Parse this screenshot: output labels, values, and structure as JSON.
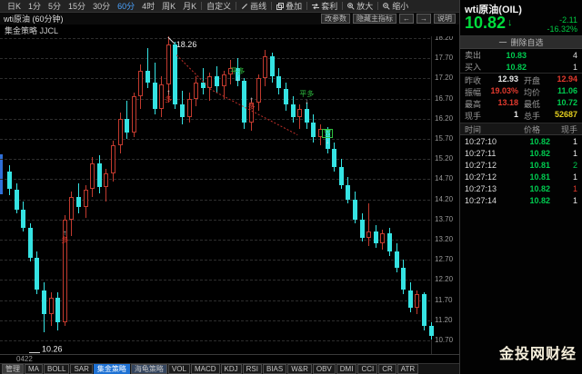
{
  "toolbar": {
    "items": [
      {
        "name": "period-daily",
        "label": "日K"
      },
      {
        "name": "period-1min",
        "label": "1分"
      },
      {
        "name": "period-5min",
        "label": "5分"
      },
      {
        "name": "period-15min",
        "label": "15分"
      },
      {
        "name": "period-30min",
        "label": "30分"
      },
      {
        "name": "period-60min",
        "label": "60分",
        "active": true
      },
      {
        "name": "period-4hour",
        "label": "4时"
      },
      {
        "name": "period-weekly",
        "label": "周K"
      },
      {
        "name": "period-monthly",
        "label": "月K"
      },
      {
        "name": "custom-period",
        "label": "自定义",
        "sep": true
      },
      {
        "name": "draw-line",
        "label": "画线",
        "icon": "pencil",
        "sep": true
      },
      {
        "name": "overlay",
        "label": "叠加",
        "icon": "overlay",
        "sep": true
      },
      {
        "name": "arbitrage",
        "label": "套利",
        "icon": "arbitrage",
        "sep": true
      },
      {
        "name": "zoom-in",
        "label": "放大",
        "icon": "zoom-in",
        "sep": true
      },
      {
        "name": "zoom-out",
        "label": "缩小",
        "icon": "zoom-out",
        "sep": true
      }
    ]
  },
  "chart_header": {
    "title": "wti原油 (60分钟)",
    "strategy": "集金策略 JJCL",
    "buttons": [
      {
        "name": "change-params",
        "label": "改参数"
      },
      {
        "name": "hide-main-indicator",
        "label": "隐藏主指标"
      },
      {
        "name": "prev-arrow",
        "label": "←"
      },
      {
        "name": "next-arrow",
        "label": "→"
      },
      {
        "name": "help",
        "label": "说明"
      }
    ]
  },
  "chart_data": {
    "type": "candlestick",
    "symbol": "wti原油",
    "period": "60分钟",
    "strategy": "集金策略 JJCL",
    "x_axis_label": "0422",
    "y_axis": {
      "max": 18.2,
      "min": 10.7,
      "step": 0.5,
      "labels": [
        "18.20",
        "17.70",
        "17.20",
        "16.70",
        "16.20",
        "15.70",
        "15.20",
        "14.70",
        "14.20",
        "13.70",
        "13.20",
        "12.70",
        "12.20",
        "11.70",
        "11.20",
        "10.70"
      ]
    },
    "colors": {
      "up": "#c23a2e",
      "down": "#35e3e3",
      "grid": "#2d2d2d",
      "long_label": "#e23a2e",
      "close_label": "#2fc040",
      "short_label": "#2fc040",
      "arrow": "#e8e8e8",
      "stop_line": "#c2302a"
    },
    "candles": [
      [
        14.9,
        15.05,
        14.3,
        14.45
      ],
      [
        14.45,
        14.6,
        13.85,
        13.95
      ],
      [
        13.95,
        14.15,
        13.4,
        13.5
      ],
      [
        13.5,
        13.6,
        12.65,
        12.75
      ],
      [
        12.75,
        12.9,
        11.85,
        11.95
      ],
      [
        11.95,
        12.15,
        10.9,
        11.35
      ],
      [
        11.35,
        11.9,
        11.05,
        11.75
      ],
      [
        11.75,
        11.9,
        10.95,
        11.15
      ],
      [
        11.15,
        13.8,
        11.05,
        13.7
      ],
      [
        13.7,
        14.4,
        13.3,
        14.25
      ],
      [
        14.25,
        14.6,
        13.85,
        14.0
      ],
      [
        14.0,
        14.55,
        13.75,
        14.45
      ],
      [
        14.45,
        15.25,
        14.25,
        15.1
      ],
      [
        15.1,
        15.3,
        14.35,
        14.5
      ],
      [
        14.5,
        14.95,
        14.15,
        14.85
      ],
      [
        14.85,
        15.65,
        14.65,
        15.55
      ],
      [
        15.55,
        16.35,
        15.35,
        16.2
      ],
      [
        16.2,
        16.65,
        15.7,
        15.85
      ],
      [
        15.85,
        16.85,
        15.75,
        16.75
      ],
      [
        16.75,
        17.55,
        16.45,
        17.4
      ],
      [
        17.4,
        17.95,
        16.95,
        17.1
      ],
      [
        17.1,
        17.6,
        16.3,
        16.45
      ],
      [
        16.45,
        17.25,
        16.25,
        17.05
      ],
      [
        17.05,
        18.26,
        16.6,
        18.05
      ],
      [
        18.05,
        18.1,
        16.45,
        16.55
      ],
      [
        16.55,
        16.9,
        16.05,
        16.25
      ],
      [
        16.25,
        16.85,
        16.1,
        16.7
      ],
      [
        16.7,
        17.25,
        16.5,
        17.1
      ],
      [
        17.1,
        17.45,
        16.8,
        16.95
      ],
      [
        16.95,
        17.35,
        16.65,
        17.25
      ],
      [
        17.25,
        17.5,
        16.85,
        17.0
      ],
      [
        17.0,
        17.4,
        16.7,
        17.3
      ],
      [
        17.3,
        17.65,
        17.05,
        17.45
      ],
      [
        17.45,
        17.7,
        17.0,
        17.15
      ],
      [
        17.15,
        17.2,
        15.95,
        16.1
      ],
      [
        16.1,
        16.7,
        15.9,
        16.6
      ],
      [
        16.6,
        17.3,
        16.4,
        17.2
      ],
      [
        17.2,
        17.9,
        17.0,
        17.75
      ],
      [
        17.75,
        17.85,
        17.1,
        17.25
      ],
      [
        17.25,
        17.45,
        16.8,
        16.95
      ],
      [
        16.95,
        17.1,
        16.4,
        16.55
      ],
      [
        16.55,
        16.75,
        16.1,
        16.25
      ],
      [
        16.25,
        16.55,
        15.95,
        16.45
      ],
      [
        16.45,
        16.6,
        15.95,
        16.1
      ],
      [
        16.1,
        16.3,
        15.6,
        15.75
      ],
      [
        15.75,
        16.05,
        15.55,
        15.95
      ],
      [
        15.95,
        16.0,
        15.35,
        15.45
      ],
      [
        15.45,
        15.6,
        14.9,
        15.0
      ],
      [
        15.0,
        15.2,
        14.45,
        14.55
      ],
      [
        14.55,
        14.75,
        14.1,
        14.2
      ],
      [
        14.2,
        14.4,
        13.6,
        13.7
      ],
      [
        13.7,
        13.85,
        13.15,
        13.25
      ],
      [
        13.25,
        14.1,
        13.05,
        13.4
      ],
      [
        13.4,
        13.55,
        13.0,
        13.1
      ],
      [
        13.1,
        13.45,
        12.95,
        13.35
      ],
      [
        13.35,
        13.5,
        12.8,
        12.9
      ],
      [
        12.9,
        13.1,
        12.4,
        12.5
      ],
      [
        12.5,
        12.7,
        11.85,
        11.95
      ],
      [
        11.95,
        12.15,
        11.4,
        11.5
      ],
      [
        11.5,
        11.95,
        11.35,
        11.85
      ],
      [
        11.85,
        11.9,
        10.95,
        11.05
      ],
      [
        11.05,
        11.15,
        10.72,
        10.82
      ]
    ],
    "markers": [
      {
        "index": 8,
        "text": "多",
        "kind": "open",
        "price": 13.45
      },
      {
        "index": 23,
        "text": "多",
        "kind": "open",
        "price": 16.95
      },
      {
        "index": 33,
        "text": "平多",
        "kind": "close",
        "price": 17.45
      },
      {
        "index": 35,
        "text": "多",
        "kind": "open",
        "price": 16.75
      },
      {
        "index": 43,
        "text": "平多",
        "kind": "close",
        "price": 16.9
      },
      {
        "index": 46,
        "text": "空",
        "kind": "short",
        "price": 15.95
      }
    ],
    "annotations": [
      {
        "text": "18.26",
        "index": 23,
        "price": 18.26,
        "kind": "peak"
      },
      {
        "text": "10.26",
        "index": 5,
        "price": 10.6,
        "kind": "trough"
      }
    ],
    "stop_line": [
      [
        24.5,
        17.78
      ],
      [
        29.5,
        16.92
      ],
      [
        42.0,
        15.8
      ]
    ]
  },
  "quote": {
    "symbol": "wti原油(OIL)",
    "price": "10.82",
    "direction": "↓",
    "change": "-2.11",
    "change_pct": "-16.32%",
    "remove_icon": "一",
    "watchlist_action": "删除自选",
    "orders": [
      {
        "name": "sell-row",
        "label": "卖出",
        "price": "10.83",
        "vol": "4"
      },
      {
        "name": "buy-row",
        "label": "买入",
        "price": "10.82",
        "vol": "1"
      }
    ],
    "stats": [
      {
        "label": "昨收",
        "value": "12.93",
        "color": "white"
      },
      {
        "label": "开盘",
        "value": "12.94",
        "color": "red"
      },
      {
        "label": "振幅",
        "value": "19.03%",
        "color": "red"
      },
      {
        "label": "均价",
        "value": "11.06",
        "color": "green"
      },
      {
        "label": "最高",
        "value": "13.18",
        "color": "red"
      },
      {
        "label": "最低",
        "value": "10.72",
        "color": "green"
      },
      {
        "label": "现手",
        "value": "1",
        "color": "white"
      },
      {
        "label": "总手",
        "value": "52687",
        "color": "yellow"
      }
    ]
  },
  "tape": {
    "headers": [
      "时间",
      "价格",
      "现手"
    ],
    "rows": [
      {
        "time": "10:27:10",
        "price": "10.82",
        "vol": "1",
        "vol_color": "white"
      },
      {
        "time": "10:27:11",
        "price": "10.82",
        "vol": "1",
        "vol_color": "white"
      },
      {
        "time": "10:27:12",
        "price": "10.81",
        "vol": "2",
        "vol_color": "green"
      },
      {
        "time": "10:27:12",
        "price": "10.81",
        "vol": "1",
        "vol_color": "white"
      },
      {
        "time": "10:27:13",
        "price": "10.82",
        "vol": "1",
        "vol_color": "red"
      },
      {
        "time": "10:27:14",
        "price": "10.82",
        "vol": "1",
        "vol_color": "white"
      }
    ]
  },
  "bottom_tabs": [
    {
      "name": "tab-manage",
      "label": "管理",
      "style": "manage"
    },
    {
      "name": "tab-ma",
      "label": "MA"
    },
    {
      "name": "tab-boll",
      "label": "BOLL"
    },
    {
      "name": "tab-sar",
      "label": "SAR"
    },
    {
      "name": "tab-jijin-strategy",
      "label": "集金策略",
      "style": "active"
    },
    {
      "name": "tab-turtle-strategy",
      "label": "海龟策略",
      "style": "alt"
    },
    {
      "name": "tab-vol",
      "label": "VOL"
    },
    {
      "name": "tab-macd",
      "label": "MACD"
    },
    {
      "name": "tab-kdj",
      "label": "KDJ"
    },
    {
      "name": "tab-rsi",
      "label": "RSI"
    },
    {
      "name": "tab-bias",
      "label": "BIAS"
    },
    {
      "name": "tab-wr",
      "label": "W&R"
    },
    {
      "name": "tab-obv",
      "label": "OBV"
    },
    {
      "name": "tab-dmi",
      "label": "DMI"
    },
    {
      "name": "tab-cci",
      "label": "CCI"
    },
    {
      "name": "tab-cr",
      "label": "CR"
    },
    {
      "name": "tab-atr",
      "label": "ATR"
    }
  ],
  "watermark": "金投网财经"
}
